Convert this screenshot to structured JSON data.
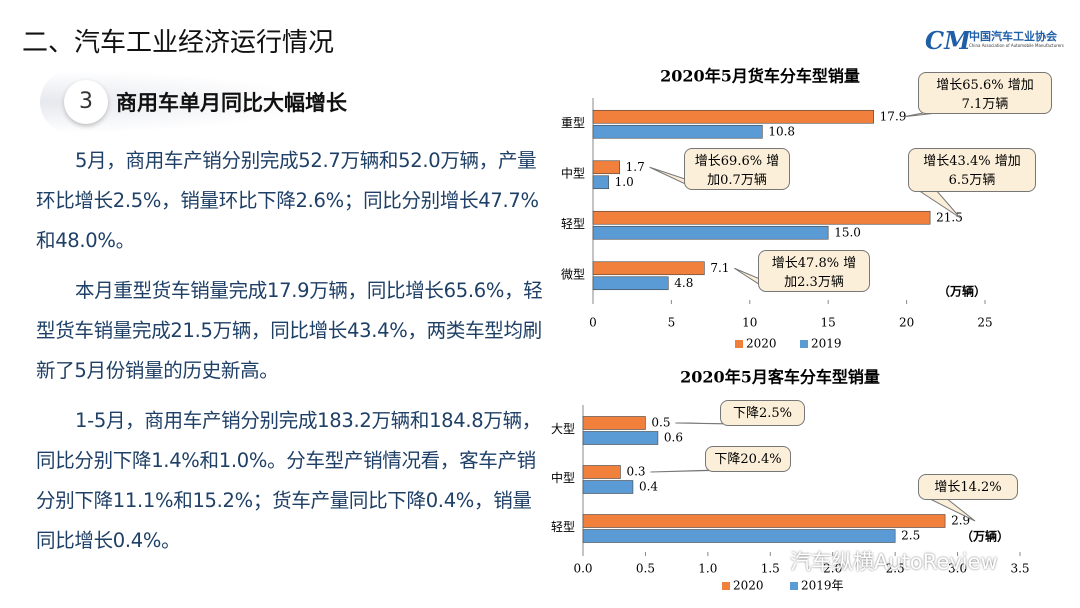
{
  "header": {
    "title": "二、汽车工业经济运行情况",
    "logo_text": "中国汽车工业协会",
    "logo_sub": "China Association of Automobile Manufacturers"
  },
  "section": {
    "number": "3",
    "title": "商用车单月同比大幅增长"
  },
  "paragraphs": [
    "5月，商用车产销分别完成52.7万辆和52.0万辆，产量环比增长2.5%，销量环比下降2.6%；同比分别增长47.7%和48.0%。",
    "本月重型货车销量完成17.9万辆，同比增长65.6%，轻型货车销量完成21.5万辆，同比增长43.4%，两类车型均刷新了5月份销量的历史新高。",
    "1-5月，商用车产销分别完成183.2万辆和184.8万辆，同比分别下降1.4%和1.0%。分车型产销情况看，客车产销分别下降11.1%和15.2%；货车产量同比下降0.4%，销量同比增长0.4%。"
  ],
  "watermark": "汽车纵横AutoReview",
  "chart_data": [
    {
      "type": "bar",
      "title": "2020年5月货车分车型销量",
      "categories": [
        "重型",
        "中型",
        "轻型",
        "微型"
      ],
      "series": [
        {
          "name": "2020",
          "color": "#f0803c",
          "values": [
            17.9,
            1.7,
            21.5,
            7.1
          ],
          "value_labels": [
            "17.9",
            "1.7",
            "21.5",
            "7.1"
          ]
        },
        {
          "name": "2019",
          "color": "#5b9bd5",
          "values": [
            10.8,
            1.0,
            15.0,
            4.8
          ],
          "value_labels": [
            "10.8",
            "1.0",
            "15.0",
            "4.8"
          ]
        }
      ],
      "xlim": [
        0,
        25
      ],
      "xticks": [
        0,
        5,
        10,
        15,
        20,
        25
      ],
      "x_label": "（万辆）",
      "annotations": [
        "增长65.6% 增加7.1万辆",
        "增长69.6% 增加0.7万辆",
        "增长43.4% 增加6.5万辆",
        "增长47.8% 增加2.3万辆"
      ],
      "legend": "bottom"
    },
    {
      "type": "bar",
      "title": "2020年5月客车分车型销量",
      "categories": [
        "大型",
        "中型",
        "轻型"
      ],
      "series": [
        {
          "name": "2020",
          "color": "#f0803c",
          "values": [
            0.5,
            0.3,
            2.9
          ]
        },
        {
          "name": "2019年",
          "color": "#5b9bd5",
          "values": [
            0.6,
            0.4,
            2.5
          ]
        }
      ],
      "xlim": [
        0,
        3.5
      ],
      "xticks": [
        {
          "value": 0,
          "label": "0.0"
        },
        0.5,
        {
          "value": 1,
          "label": "1.0"
        },
        1.5,
        {
          "value": 2,
          "label": "2.0"
        },
        2.5,
        {
          "value": 3,
          "label": "3.0"
        },
        3.5
      ],
      "x_label": "（万辆）",
      "annotations": [
        "下降2.5%",
        "下降20.4%",
        "增长14.2%"
      ],
      "legend": "bottom"
    }
  ]
}
